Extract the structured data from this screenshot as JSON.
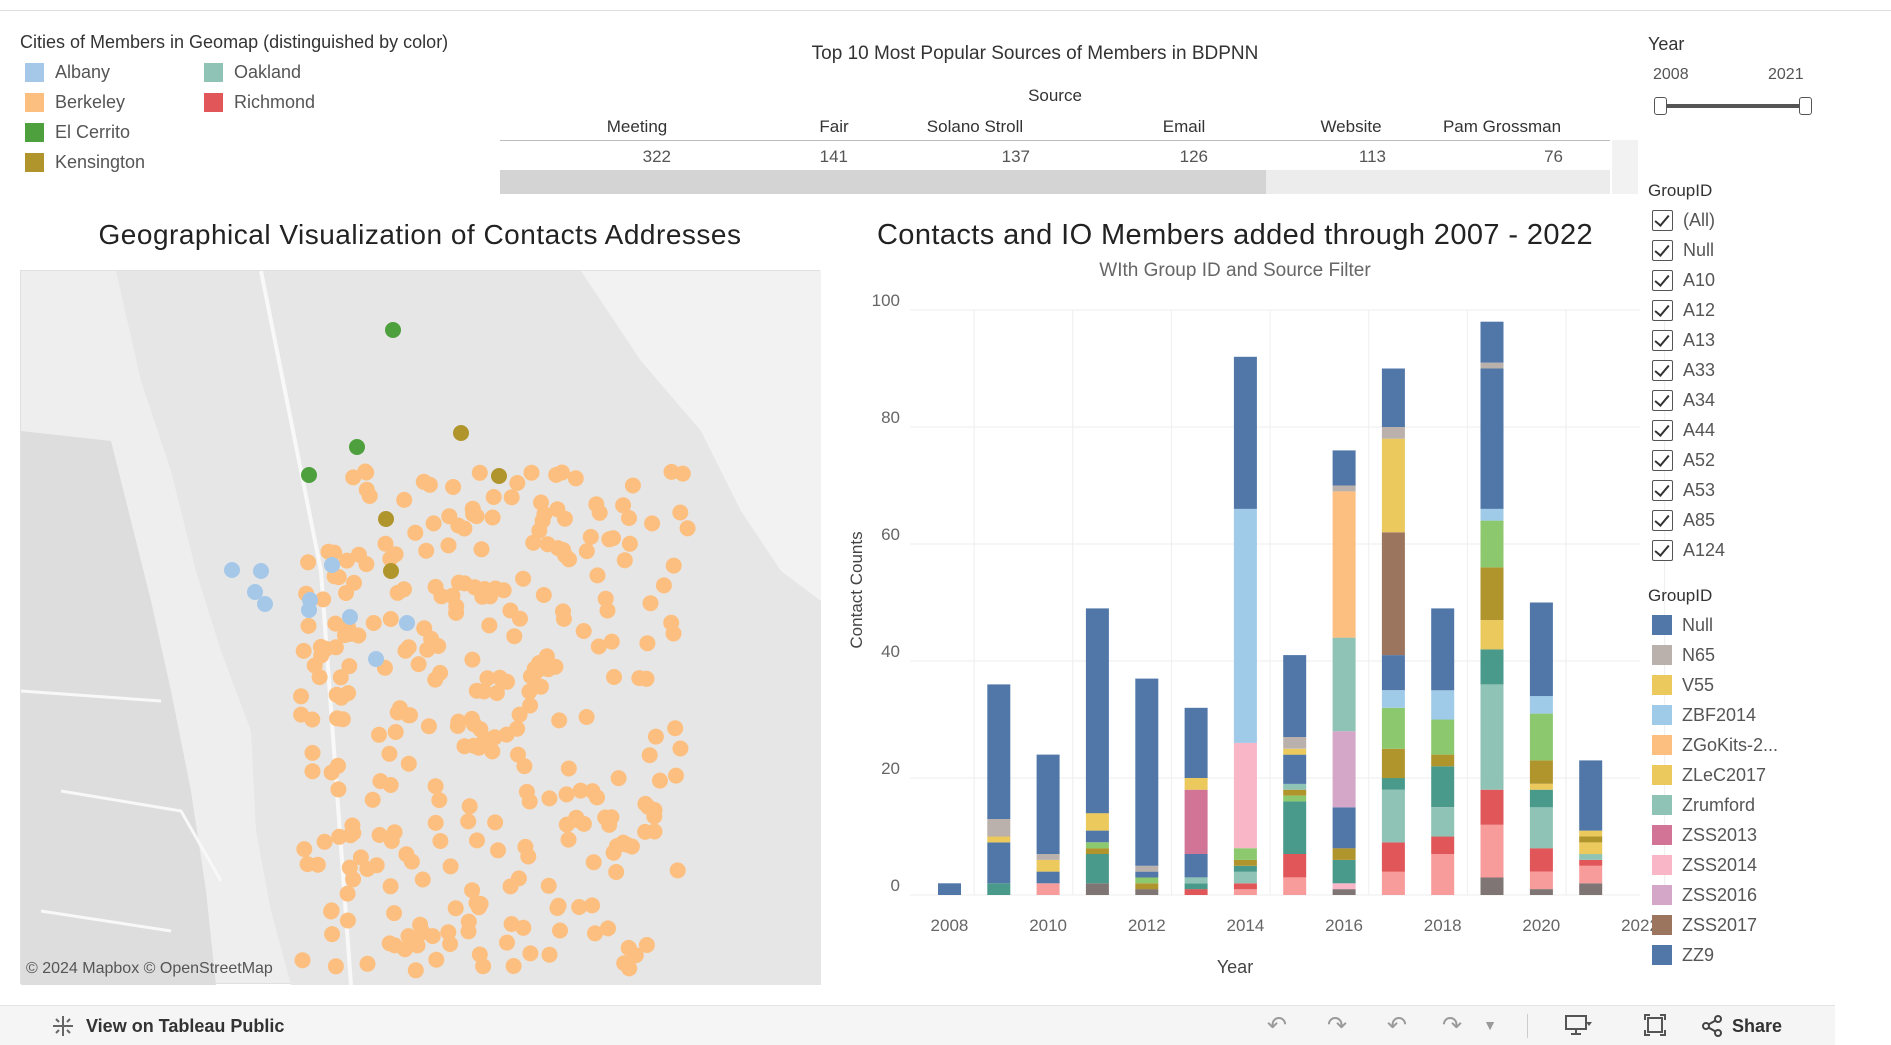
{
  "legend_cities": {
    "title": "Cities of Members in Geomap (distinguished by color)",
    "items": [
      {
        "label": "Albany",
        "color": "#a6c8e8"
      },
      {
        "label": "Berkeley",
        "color": "#fdbf7f"
      },
      {
        "label": "El Cerrito",
        "color": "#4e9f3d"
      },
      {
        "label": "Kensington",
        "color": "#b0952d"
      },
      {
        "label": "Oakland",
        "color": "#8fc3b6"
      },
      {
        "label": "Richmond",
        "color": "#e15759"
      }
    ]
  },
  "sources_table": {
    "title": "Top 10 Most Popular Sources of Members in BDPNN",
    "header": "Source",
    "columns": [
      {
        "name": "Meeting",
        "value": "322"
      },
      {
        "name": "Fair",
        "value": "141"
      },
      {
        "name": "Solano Stroll",
        "value": "137"
      },
      {
        "name": "Email",
        "value": "126"
      },
      {
        "name": "Website",
        "value": "113"
      },
      {
        "name": "Pam Grossman",
        "value": "76"
      }
    ]
  },
  "map": {
    "title": "Geographical Visualization of Contacts Addresses",
    "attribution": "© 2024 Mapbox  © OpenStreetMap"
  },
  "chart_data": {
    "type": "bar",
    "title": "Contacts and IO Members added through 2007 - 2022",
    "subtitle": "WIth Group ID and Source Filter",
    "xlabel": "Year",
    "ylabel": "Contact Counts",
    "ylim": [
      0,
      100
    ],
    "yticks": [
      0,
      20,
      40,
      60,
      80,
      100
    ],
    "xticks": [
      2008,
      2010,
      2012,
      2014,
      2016,
      2018,
      2020,
      2022
    ],
    "grid": true,
    "stacked": true,
    "categories": [
      2008,
      2009,
      2010,
      2011,
      2012,
      2013,
      2014,
      2015,
      2016,
      2017,
      2018,
      2019,
      2020,
      2021
    ],
    "bars": [
      {
        "year": 2008,
        "segments": [
          {
            "c": "#5177a8",
            "v": 2
          }
        ]
      },
      {
        "year": 2009,
        "segments": [
          {
            "c": "#4a9a8c",
            "v": 2
          },
          {
            "c": "#5177a8",
            "v": 7
          },
          {
            "c": "#ebc95c",
            "v": 1
          },
          {
            "c": "#bab0ac",
            "v": 3
          },
          {
            "c": "#5177a8",
            "v": 23
          }
        ]
      },
      {
        "year": 2010,
        "segments": [
          {
            "c": "#f89b9b",
            "v": 2
          },
          {
            "c": "#5177a8",
            "v": 2
          },
          {
            "c": "#ebc95c",
            "v": 2
          },
          {
            "c": "#bab0ac",
            "v": 1
          },
          {
            "c": "#5177a8",
            "v": 17
          }
        ]
      },
      {
        "year": 2011,
        "segments": [
          {
            "c": "#7f7574",
            "v": 2
          },
          {
            "c": "#4a9a8c",
            "v": 5
          },
          {
            "c": "#b0952d",
            "v": 1
          },
          {
            "c": "#8cc86e",
            "v": 1
          },
          {
            "c": "#5177a8",
            "v": 2
          },
          {
            "c": "#ebc95c",
            "v": 3
          },
          {
            "c": "#5177a8",
            "v": 35
          }
        ]
      },
      {
        "year": 2012,
        "segments": [
          {
            "c": "#7f7574",
            "v": 1
          },
          {
            "c": "#b0952d",
            "v": 1
          },
          {
            "c": "#8cc86e",
            "v": 1
          },
          {
            "c": "#5177a8",
            "v": 1
          },
          {
            "c": "#bab0ac",
            "v": 1
          },
          {
            "c": "#5177a8",
            "v": 32
          }
        ]
      },
      {
        "year": 2013,
        "segments": [
          {
            "c": "#e15759",
            "v": 1
          },
          {
            "c": "#4a9a8c",
            "v": 1
          },
          {
            "c": "#8fc3b6",
            "v": 1
          },
          {
            "c": "#5177a8",
            "v": 4
          },
          {
            "c": "#d27496",
            "v": 11
          },
          {
            "c": "#ebc95c",
            "v": 2
          },
          {
            "c": "#5177a8",
            "v": 12
          }
        ]
      },
      {
        "year": 2014,
        "segments": [
          {
            "c": "#f89b9b",
            "v": 1
          },
          {
            "c": "#e15759",
            "v": 1
          },
          {
            "c": "#8fc3b6",
            "v": 2
          },
          {
            "c": "#4a9a8c",
            "v": 1
          },
          {
            "c": "#b0952d",
            "v": 1
          },
          {
            "c": "#8cc86e",
            "v": 2
          },
          {
            "c": "#f8b6c7",
            "v": 18
          },
          {
            "c": "#a0cbe8",
            "v": 40
          },
          {
            "c": "#5177a8",
            "v": 26
          }
        ]
      },
      {
        "year": 2015,
        "segments": [
          {
            "c": "#f89b9b",
            "v": 3
          },
          {
            "c": "#e15759",
            "v": 4
          },
          {
            "c": "#4a9a8c",
            "v": 9
          },
          {
            "c": "#8cc86e",
            "v": 1
          },
          {
            "c": "#b0952d",
            "v": 1
          },
          {
            "c": "#8fc3b6",
            "v": 1
          },
          {
            "c": "#5177a8",
            "v": 5
          },
          {
            "c": "#ebc95c",
            "v": 1
          },
          {
            "c": "#bab0ac",
            "v": 2
          },
          {
            "c": "#5177a8",
            "v": 14
          }
        ]
      },
      {
        "year": 2016,
        "segments": [
          {
            "c": "#7f7574",
            "v": 1
          },
          {
            "c": "#f8b6c7",
            "v": 1
          },
          {
            "c": "#4a9a8c",
            "v": 4
          },
          {
            "c": "#b0952d",
            "v": 2
          },
          {
            "c": "#5177a8",
            "v": 7
          },
          {
            "c": "#d4a6c8",
            "v": 13
          },
          {
            "c": "#8fc3b6",
            "v": 16
          },
          {
            "c": "#fdbf7f",
            "v": 25
          },
          {
            "c": "#bab0ac",
            "v": 1
          },
          {
            "c": "#5177a8",
            "v": 6
          }
        ]
      },
      {
        "year": 2017,
        "segments": [
          {
            "c": "#f89b9b",
            "v": 4
          },
          {
            "c": "#e15759",
            "v": 5
          },
          {
            "c": "#8fc3b6",
            "v": 9
          },
          {
            "c": "#4a9a8c",
            "v": 2
          },
          {
            "c": "#b0952d",
            "v": 5
          },
          {
            "c": "#8cc86e",
            "v": 7
          },
          {
            "c": "#a0cbe8",
            "v": 3
          },
          {
            "c": "#5177a8",
            "v": 6
          },
          {
            "c": "#9c755f",
            "v": 21
          },
          {
            "c": "#ebc95c",
            "v": 16
          },
          {
            "c": "#bab0ac",
            "v": 2
          },
          {
            "c": "#5177a8",
            "v": 10
          }
        ]
      },
      {
        "year": 2018,
        "segments": [
          {
            "c": "#f89b9b",
            "v": 7
          },
          {
            "c": "#e15759",
            "v": 3
          },
          {
            "c": "#8fc3b6",
            "v": 5
          },
          {
            "c": "#4a9a8c",
            "v": 7
          },
          {
            "c": "#b0952d",
            "v": 2
          },
          {
            "c": "#8cc86e",
            "v": 6
          },
          {
            "c": "#a0cbe8",
            "v": 5
          },
          {
            "c": "#5177a8",
            "v": 14
          }
        ]
      },
      {
        "year": 2019,
        "segments": [
          {
            "c": "#7f7574",
            "v": 3
          },
          {
            "c": "#f89b9b",
            "v": 9
          },
          {
            "c": "#e15759",
            "v": 6
          },
          {
            "c": "#8fc3b6",
            "v": 18
          },
          {
            "c": "#4a9a8c",
            "v": 6
          },
          {
            "c": "#ebc95c",
            "v": 5
          },
          {
            "c": "#b0952d",
            "v": 9
          },
          {
            "c": "#8cc86e",
            "v": 8
          },
          {
            "c": "#a0cbe8",
            "v": 2
          },
          {
            "c": "#5177a8",
            "v": 24
          },
          {
            "c": "#bab0ac",
            "v": 1
          },
          {
            "c": "#5177a8",
            "v": 7
          }
        ]
      },
      {
        "year": 2020,
        "segments": [
          {
            "c": "#7f7574",
            "v": 1
          },
          {
            "c": "#f89b9b",
            "v": 3
          },
          {
            "c": "#e15759",
            "v": 4
          },
          {
            "c": "#8fc3b6",
            "v": 7
          },
          {
            "c": "#4a9a8c",
            "v": 3
          },
          {
            "c": "#ebc95c",
            "v": 1
          },
          {
            "c": "#b0952d",
            "v": 4
          },
          {
            "c": "#8cc86e",
            "v": 8
          },
          {
            "c": "#a0cbe8",
            "v": 3
          },
          {
            "c": "#5177a8",
            "v": 16
          }
        ]
      },
      {
        "year": 2021,
        "segments": [
          {
            "c": "#7f7574",
            "v": 2
          },
          {
            "c": "#f89b9b",
            "v": 3
          },
          {
            "c": "#e15759",
            "v": 1
          },
          {
            "c": "#8fc3b6",
            "v": 1
          },
          {
            "c": "#ebc95c",
            "v": 2
          },
          {
            "c": "#b0952d",
            "v": 1
          },
          {
            "c": "#ebc95c",
            "v": 1
          },
          {
            "c": "#5177a8",
            "v": 12
          }
        ]
      }
    ]
  },
  "year_filter": {
    "title": "Year",
    "min_label": "2008",
    "max_label": "2021"
  },
  "group_filter": {
    "title": "GroupID",
    "items": [
      "(All)",
      "Null",
      "A10",
      "A12",
      "A13",
      "A33",
      "A34",
      "A44",
      "A52",
      "A53",
      "A85",
      "A124"
    ]
  },
  "group_legend": {
    "title": "GroupID",
    "items": [
      {
        "label": "Null",
        "color": "#5177a8"
      },
      {
        "label": "N65",
        "color": "#bab0ac"
      },
      {
        "label": "V55",
        "color": "#ebc95c"
      },
      {
        "label": "ZBF2014",
        "color": "#a0cbe8"
      },
      {
        "label": "ZGoKits-2...",
        "color": "#fdbf7f"
      },
      {
        "label": "ZLeC2017",
        "color": "#ebc95c"
      },
      {
        "label": "Zrumford",
        "color": "#8fc3b6"
      },
      {
        "label": "ZSS2013",
        "color": "#d27496"
      },
      {
        "label": "ZSS2014",
        "color": "#f8b6c7"
      },
      {
        "label": "ZSS2016",
        "color": "#d4a6c8"
      },
      {
        "label": "ZSS2017",
        "color": "#9c755f"
      },
      {
        "label": "ZZ9",
        "color": "#5177a8"
      }
    ]
  },
  "footer": {
    "view_label": "View on Tableau Public",
    "share_label": "Share"
  }
}
